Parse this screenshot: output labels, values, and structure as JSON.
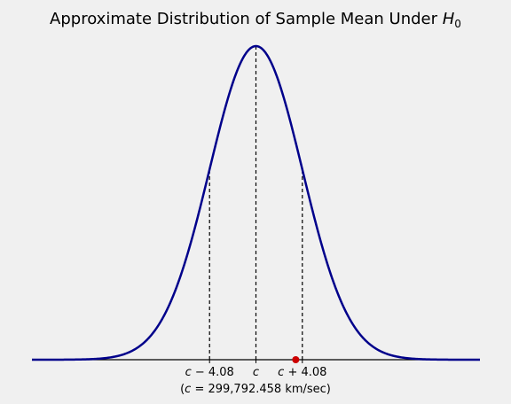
{
  "chart_data": {
    "type": "line",
    "title": "Approximate Distribution of Sample Mean Under",
    "title_symbol": "H",
    "title_subscript": "0",
    "xlabel": "(c = 299,792.458 km/sec)",
    "xlabel_parts": {
      "open": "(",
      "var": "c",
      "rest": " = 299,792.458 km/sec)"
    },
    "distribution": {
      "kind": "normal",
      "mean": 0,
      "sd": 4.08
    },
    "xlim": [
      -19.7,
      19.7
    ],
    "ticks": [
      {
        "x": -4.08,
        "var": "c",
        "rest": " − 4.08"
      },
      {
        "x": 0,
        "var": "c",
        "rest": ""
      },
      {
        "x": 4.08,
        "var": "c",
        "rest": " + 4.08"
      }
    ],
    "dashed_lines_x": [
      -4.08,
      0,
      4.08
    ],
    "observed_point": {
      "x": 3.5,
      "y": 0,
      "color": "#cc0000"
    },
    "grid": false,
    "legend": "none",
    "colors": {
      "curve": "#00008b",
      "axis": "#000000",
      "dashed": "#000000",
      "background": "#f0f0f0"
    }
  }
}
